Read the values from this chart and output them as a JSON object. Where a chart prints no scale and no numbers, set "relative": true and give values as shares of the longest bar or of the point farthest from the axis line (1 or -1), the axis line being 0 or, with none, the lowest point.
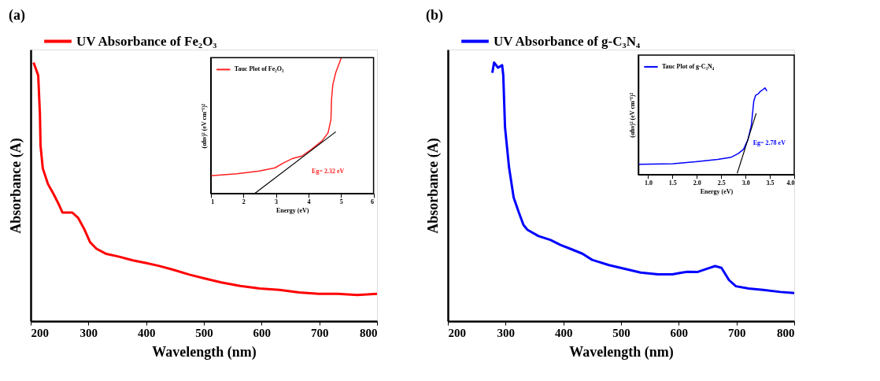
{
  "chart_data": [
    {
      "type": "line",
      "title": "(a)",
      "xlabel": "Wavelength (nm)",
      "ylabel": "Absorbance (A)",
      "xlim": [
        200,
        800
      ],
      "xticks": [
        200,
        300,
        400,
        500,
        600,
        700,
        800
      ],
      "relative": true,
      "tick_labels": "x",
      "legend": "top left",
      "series": [
        {
          "name": "UV Absorbance of Fe₂O₃",
          "color": "#ff0000",
          "x": [
            205,
            213,
            216,
            217,
            221,
            230,
            240,
            249,
            255,
            272,
            282,
            293,
            303,
            314,
            331,
            352,
            377,
            399,
            420,
            445,
            475,
            500,
            530,
            563,
            597,
            631,
            665,
            699,
            732,
            766,
            800
          ],
          "values": [
            1.0,
            0.95,
            0.8,
            0.68,
            0.59,
            0.53,
            0.49,
            0.45,
            0.42,
            0.42,
            0.4,
            0.355,
            0.305,
            0.28,
            0.26,
            0.25,
            0.235,
            0.225,
            0.215,
            0.2,
            0.18,
            0.166,
            0.15,
            0.136,
            0.126,
            0.121,
            0.111,
            0.106,
            0.106,
            0.101,
            0.106
          ]
        }
      ]
    },
    {
      "type": "line",
      "xlabel": "Energy (eV)",
      "ylabel": "(αhν)² (eV cm⁻¹)²",
      "xlim": [
        1,
        6
      ],
      "xticks": [
        1,
        2,
        3,
        4,
        5,
        6
      ],
      "relative": true,
      "tick_labels": "x",
      "legend": "top left",
      "annotations": [
        "Eg= 2.32 eV"
      ],
      "series": [
        {
          "name": "Tauc Plot of Fe₂O₃",
          "color": "#ff2020",
          "x": [
            1.0,
            1.8,
            2.49,
            2.97,
            3.25,
            3.52,
            3.8,
            4.08,
            4.42,
            4.6,
            4.69,
            4.71,
            4.75,
            4.84,
            5.01
          ],
          "values": [
            0.131,
            0.145,
            0.166,
            0.189,
            0.227,
            0.259,
            0.276,
            0.323,
            0.388,
            0.446,
            0.542,
            0.699,
            0.804,
            0.892,
            1.0
          ]
        },
        {
          "color": "#000000",
          "x": [
            2.35,
            4.84
          ],
          "values": [
            0.0,
            0.455
          ]
        }
      ]
    },
    {
      "type": "line",
      "title": "(b)",
      "xlabel": "Wavelength (nm)",
      "ylabel": "Absorbance (A)",
      "xlim": [
        200,
        800
      ],
      "xticks": [
        200,
        300,
        400,
        500,
        600,
        700,
        800
      ],
      "relative": true,
      "tick_labels": "x",
      "legend": "top left",
      "series": [
        {
          "name": "UV Absorbance of g-C₃N₄",
          "color": "#0000ff",
          "x": [
            277,
            280,
            287,
            294,
            296,
            299,
            306,
            314,
            323,
            331,
            338,
            357,
            378,
            395,
            412,
            433,
            450,
            479,
            505,
            534,
            564,
            589,
            606,
            615,
            632,
            649,
            663,
            674,
            687,
            699,
            721,
            746,
            776,
            800
          ],
          "values": [
            0.96,
            1.0,
            0.98,
            0.99,
            0.95,
            0.75,
            0.594,
            0.478,
            0.42,
            0.372,
            0.353,
            0.329,
            0.314,
            0.295,
            0.28,
            0.261,
            0.237,
            0.217,
            0.203,
            0.188,
            0.181,
            0.181,
            0.188,
            0.191,
            0.19,
            0.203,
            0.213,
            0.206,
            0.159,
            0.135,
            0.126,
            0.121,
            0.113,
            0.109
          ]
        }
      ]
    },
    {
      "type": "line",
      "xlabel": "Energy (eV)",
      "ylabel": "(αhν)² (eV cm⁻¹)²",
      "xlim": [
        0.8,
        4.0
      ],
      "xticks": [
        {
          "value": 1,
          "label": "1.0"
        },
        1.5,
        {
          "value": 2,
          "label": "2.0"
        },
        2.5,
        {
          "value": 3,
          "label": "3.0"
        },
        3.5,
        {
          "value": 4,
          "label": "4.0"
        }
      ],
      "relative": true,
      "tick_labels": "x",
      "legend": "top left",
      "annotations": [
        "Eg= 2.78 eV"
      ],
      "series": [
        {
          "name": "Tauc Plot of g-C₃N₄",
          "color": "#0000ff",
          "x": [
            0.8,
            1.51,
            1.97,
            2.43,
            2.71,
            2.85,
            2.96,
            3.05,
            3.12,
            3.17,
            3.21,
            3.26,
            3.3,
            3.37,
            3.4,
            3.44
          ],
          "values": [
            0.117,
            0.125,
            0.147,
            0.175,
            0.2,
            0.242,
            0.292,
            0.403,
            0.569,
            0.847,
            0.917,
            0.93,
            0.958,
            0.986,
            1.0,
            0.964
          ]
        },
        {
          "color": "#000000",
          "x": [
            2.83,
            3.22
          ],
          "values": [
            0.014,
            0.708
          ]
        }
      ]
    }
  ]
}
